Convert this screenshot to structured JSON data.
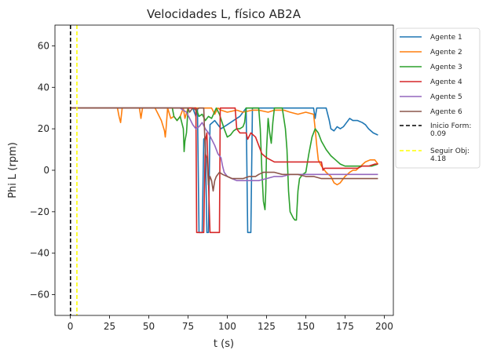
{
  "chart_data": {
    "type": "line",
    "title": "Velocidades L, físico AB2A",
    "xlabel": "t (s)",
    "ylabel": "Phi L (rpm)",
    "xlim": [
      -9.8,
      205.8
    ],
    "ylim": [
      -70,
      70
    ],
    "xticks": [
      0,
      25,
      50,
      75,
      100,
      125,
      150,
      175,
      200
    ],
    "xtick_labels": [
      "0",
      "25",
      "50",
      "75",
      "100",
      "125",
      "150",
      "175",
      "200"
    ],
    "yticks": [
      -60,
      -40,
      -20,
      0,
      20,
      40,
      60
    ],
    "ytick_labels": [
      "−60",
      "−40",
      "−20",
      "0",
      "20",
      "40",
      "60"
    ],
    "grid": false,
    "legend_position": "outside-right",
    "series": [
      {
        "name": "Agente 1",
        "color": "#1f77b4",
        "points": [
          [
            0,
            30
          ],
          [
            78,
            30
          ],
          [
            80,
            26
          ],
          [
            81,
            30
          ],
          [
            82,
            -30
          ],
          [
            84,
            -30
          ],
          [
            85,
            15
          ],
          [
            86,
            16
          ],
          [
            87,
            -30
          ],
          [
            88,
            -30
          ],
          [
            89,
            22
          ],
          [
            92,
            24
          ],
          [
            96,
            20
          ],
          [
            100,
            22
          ],
          [
            104,
            24
          ],
          [
            108,
            26
          ],
          [
            112,
            30
          ],
          [
            113,
            -30
          ],
          [
            115,
            -30
          ],
          [
            116,
            30
          ],
          [
            150,
            30
          ],
          [
            155,
            30
          ],
          [
            156,
            25
          ],
          [
            157,
            30
          ],
          [
            163,
            30
          ],
          [
            165,
            24
          ],
          [
            166,
            20
          ],
          [
            168,
            19
          ],
          [
            170,
            21
          ],
          [
            172,
            20
          ],
          [
            174,
            21
          ],
          [
            176,
            23
          ],
          [
            178,
            25
          ],
          [
            180,
            24
          ],
          [
            183,
            24
          ],
          [
            186,
            23
          ],
          [
            188,
            22
          ],
          [
            190,
            20
          ],
          [
            193,
            18
          ],
          [
            196,
            17
          ]
        ]
      },
      {
        "name": "Agente 2",
        "color": "#ff7f0e",
        "points": [
          [
            0,
            30
          ],
          [
            30,
            30
          ],
          [
            31,
            26
          ],
          [
            32,
            23
          ],
          [
            33,
            30
          ],
          [
            44,
            30
          ],
          [
            45,
            25
          ],
          [
            46,
            30
          ],
          [
            54,
            30
          ],
          [
            56,
            27
          ],
          [
            58,
            24
          ],
          [
            60,
            19
          ],
          [
            60.5,
            16
          ],
          [
            61,
            20
          ],
          [
            62,
            30
          ],
          [
            64,
            25
          ],
          [
            66,
            26
          ],
          [
            68,
            24
          ],
          [
            70,
            26
          ],
          [
            72,
            30
          ],
          [
            73,
            25
          ],
          [
            75,
            30
          ],
          [
            78,
            30
          ],
          [
            90,
            30
          ],
          [
            92,
            27
          ],
          [
            94,
            30
          ],
          [
            96,
            29
          ],
          [
            100,
            28
          ],
          [
            106,
            29
          ],
          [
            110,
            28
          ],
          [
            116,
            29
          ],
          [
            120,
            29
          ],
          [
            126,
            28
          ],
          [
            130,
            29
          ],
          [
            136,
            29
          ],
          [
            140,
            28
          ],
          [
            145,
            27
          ],
          [
            150,
            28
          ],
          [
            155,
            27
          ],
          [
            156,
            20
          ],
          [
            157,
            12
          ],
          [
            158,
            5
          ],
          [
            160,
            2
          ],
          [
            163,
            -1
          ],
          [
            166,
            -3
          ],
          [
            168,
            -6
          ],
          [
            170,
            -7
          ],
          [
            172,
            -6
          ],
          [
            175,
            -3
          ],
          [
            178,
            -1
          ],
          [
            180,
            0
          ],
          [
            182,
            0
          ],
          [
            185,
            2
          ],
          [
            188,
            4
          ],
          [
            191,
            5
          ],
          [
            194,
            5
          ],
          [
            196,
            3
          ]
        ]
      },
      {
        "name": "Agente 3",
        "color": "#2ca02c",
        "points": [
          [
            0,
            30
          ],
          [
            65,
            30
          ],
          [
            66,
            26
          ],
          [
            68,
            24
          ],
          [
            70,
            26
          ],
          [
            72,
            20
          ],
          [
            72.5,
            9
          ],
          [
            73,
            14
          ],
          [
            74,
            18
          ],
          [
            75,
            30
          ],
          [
            80,
            30
          ],
          [
            82,
            26
          ],
          [
            84,
            27
          ],
          [
            86,
            24
          ],
          [
            88,
            26
          ],
          [
            90,
            25
          ],
          [
            93,
            30
          ],
          [
            95,
            27
          ],
          [
            98,
            20
          ],
          [
            100,
            16
          ],
          [
            102,
            17
          ],
          [
            104,
            19
          ],
          [
            106,
            20
          ],
          [
            108,
            20
          ],
          [
            110,
            21
          ],
          [
            111,
            23
          ],
          [
            112,
            30
          ],
          [
            120,
            30
          ],
          [
            121,
            20
          ],
          [
            122,
            0
          ],
          [
            123,
            -15
          ],
          [
            124,
            -19
          ],
          [
            124.5,
            -10
          ],
          [
            125,
            10
          ],
          [
            126,
            25
          ],
          [
            127,
            18
          ],
          [
            128,
            13
          ],
          [
            129,
            23
          ],
          [
            130,
            30
          ],
          [
            135,
            30
          ],
          [
            136,
            25
          ],
          [
            137,
            20
          ],
          [
            138,
            10
          ],
          [
            139,
            -10
          ],
          [
            140,
            -20
          ],
          [
            142,
            -23
          ],
          [
            143,
            -24
          ],
          [
            144,
            -24
          ],
          [
            145,
            -10
          ],
          [
            146,
            -4
          ],
          [
            148,
            -2
          ],
          [
            150,
            -1
          ],
          [
            152,
            8
          ],
          [
            154,
            16
          ],
          [
            156,
            20
          ],
          [
            158,
            18
          ],
          [
            160,
            14
          ],
          [
            163,
            10
          ],
          [
            166,
            7
          ],
          [
            169,
            5
          ],
          [
            172,
            3
          ],
          [
            175,
            2
          ],
          [
            178,
            2
          ],
          [
            181,
            2
          ],
          [
            184,
            2
          ],
          [
            188,
            2
          ],
          [
            192,
            2
          ],
          [
            196,
            3
          ]
        ]
      },
      {
        "name": "Agente 4",
        "color": "#d62728",
        "points": [
          [
            0,
            30
          ],
          [
            60,
            30
          ],
          [
            70,
            30
          ],
          [
            80,
            30
          ],
          [
            80.5,
            -30
          ],
          [
            82,
            -30
          ],
          [
            85,
            -30
          ],
          [
            86,
            14
          ],
          [
            87,
            18
          ],
          [
            88,
            -5
          ],
          [
            89,
            -30
          ],
          [
            92,
            -30
          ],
          [
            95,
            -30
          ],
          [
            95.5,
            30
          ],
          [
            97,
            30
          ],
          [
            100,
            30
          ],
          [
            105,
            30
          ],
          [
            106,
            20
          ],
          [
            108,
            18
          ],
          [
            112,
            18
          ],
          [
            113,
            15
          ],
          [
            115,
            18
          ],
          [
            118,
            16
          ],
          [
            120,
            12
          ],
          [
            122,
            8
          ],
          [
            125,
            6
          ],
          [
            130,
            4
          ],
          [
            135,
            4
          ],
          [
            140,
            4
          ],
          [
            145,
            4
          ],
          [
            150,
            4
          ],
          [
            155,
            4
          ],
          [
            160,
            4
          ],
          [
            161,
            0
          ],
          [
            162,
            1
          ],
          [
            165,
            1
          ],
          [
            170,
            1
          ],
          [
            175,
            1
          ],
          [
            180,
            1
          ],
          [
            183,
            1
          ],
          [
            186,
            2
          ],
          [
            190,
            2
          ],
          [
            194,
            3
          ],
          [
            196,
            3
          ]
        ]
      },
      {
        "name": "Agente 5",
        "color": "#9467bd",
        "points": [
          [
            0,
            30
          ],
          [
            70,
            30
          ],
          [
            72,
            29
          ],
          [
            74,
            28
          ],
          [
            76,
            25
          ],
          [
            78,
            22
          ],
          [
            80,
            20
          ],
          [
            82,
            21
          ],
          [
            84,
            23
          ],
          [
            86,
            20
          ],
          [
            88,
            18
          ],
          [
            90,
            15
          ],
          [
            92,
            12
          ],
          [
            94,
            8
          ],
          [
            96,
            6
          ],
          [
            97,
            2
          ],
          [
            98,
            -1
          ],
          [
            100,
            -3
          ],
          [
            103,
            -4
          ],
          [
            106,
            -5
          ],
          [
            110,
            -5
          ],
          [
            115,
            -5
          ],
          [
            120,
            -5
          ],
          [
            125,
            -4
          ],
          [
            130,
            -3
          ],
          [
            135,
            -3
          ],
          [
            140,
            -2
          ],
          [
            145,
            -2
          ],
          [
            150,
            -2
          ],
          [
            155,
            -2
          ],
          [
            160,
            -2
          ],
          [
            165,
            -2
          ],
          [
            170,
            -2
          ],
          [
            175,
            -2
          ],
          [
            180,
            -2
          ],
          [
            185,
            -2
          ],
          [
            190,
            -2
          ],
          [
            196,
            -2
          ]
        ]
      },
      {
        "name": "Agente 6",
        "color": "#8c564b",
        "points": [
          [
            0,
            30
          ],
          [
            70,
            30
          ],
          [
            75,
            30
          ],
          [
            76,
            28
          ],
          [
            78,
            30
          ],
          [
            80,
            29
          ],
          [
            82,
            30
          ],
          [
            85,
            30
          ],
          [
            86,
            8
          ],
          [
            87,
            6
          ],
          [
            88,
            -7
          ],
          [
            89,
            -3
          ],
          [
            90,
            -5
          ],
          [
            91,
            -10
          ],
          [
            92,
            -5
          ],
          [
            93,
            -3
          ],
          [
            95,
            -1
          ],
          [
            97,
            -2
          ],
          [
            100,
            -3
          ],
          [
            103,
            -4
          ],
          [
            106,
            -4
          ],
          [
            110,
            -4
          ],
          [
            114,
            -3
          ],
          [
            118,
            -3
          ],
          [
            120,
            -2
          ],
          [
            123,
            -1
          ],
          [
            126,
            -1
          ],
          [
            130,
            -1
          ],
          [
            135,
            -2
          ],
          [
            140,
            -2
          ],
          [
            145,
            -2
          ],
          [
            150,
            -3
          ],
          [
            155,
            -3
          ],
          [
            160,
            -4
          ],
          [
            165,
            -4
          ],
          [
            170,
            -4
          ],
          [
            175,
            -4
          ],
          [
            180,
            -4
          ],
          [
            185,
            -4
          ],
          [
            190,
            -4
          ],
          [
            196,
            -4
          ]
        ]
      }
    ],
    "vlines": [
      {
        "name": "Inicio Form:\n0.09",
        "x": 0.09,
        "color": "#000000",
        "dash": true
      },
      {
        "name": "Seguir Obj:\n4.18",
        "x": 4.18,
        "color": "#ffff00",
        "dash": true
      }
    ]
  }
}
